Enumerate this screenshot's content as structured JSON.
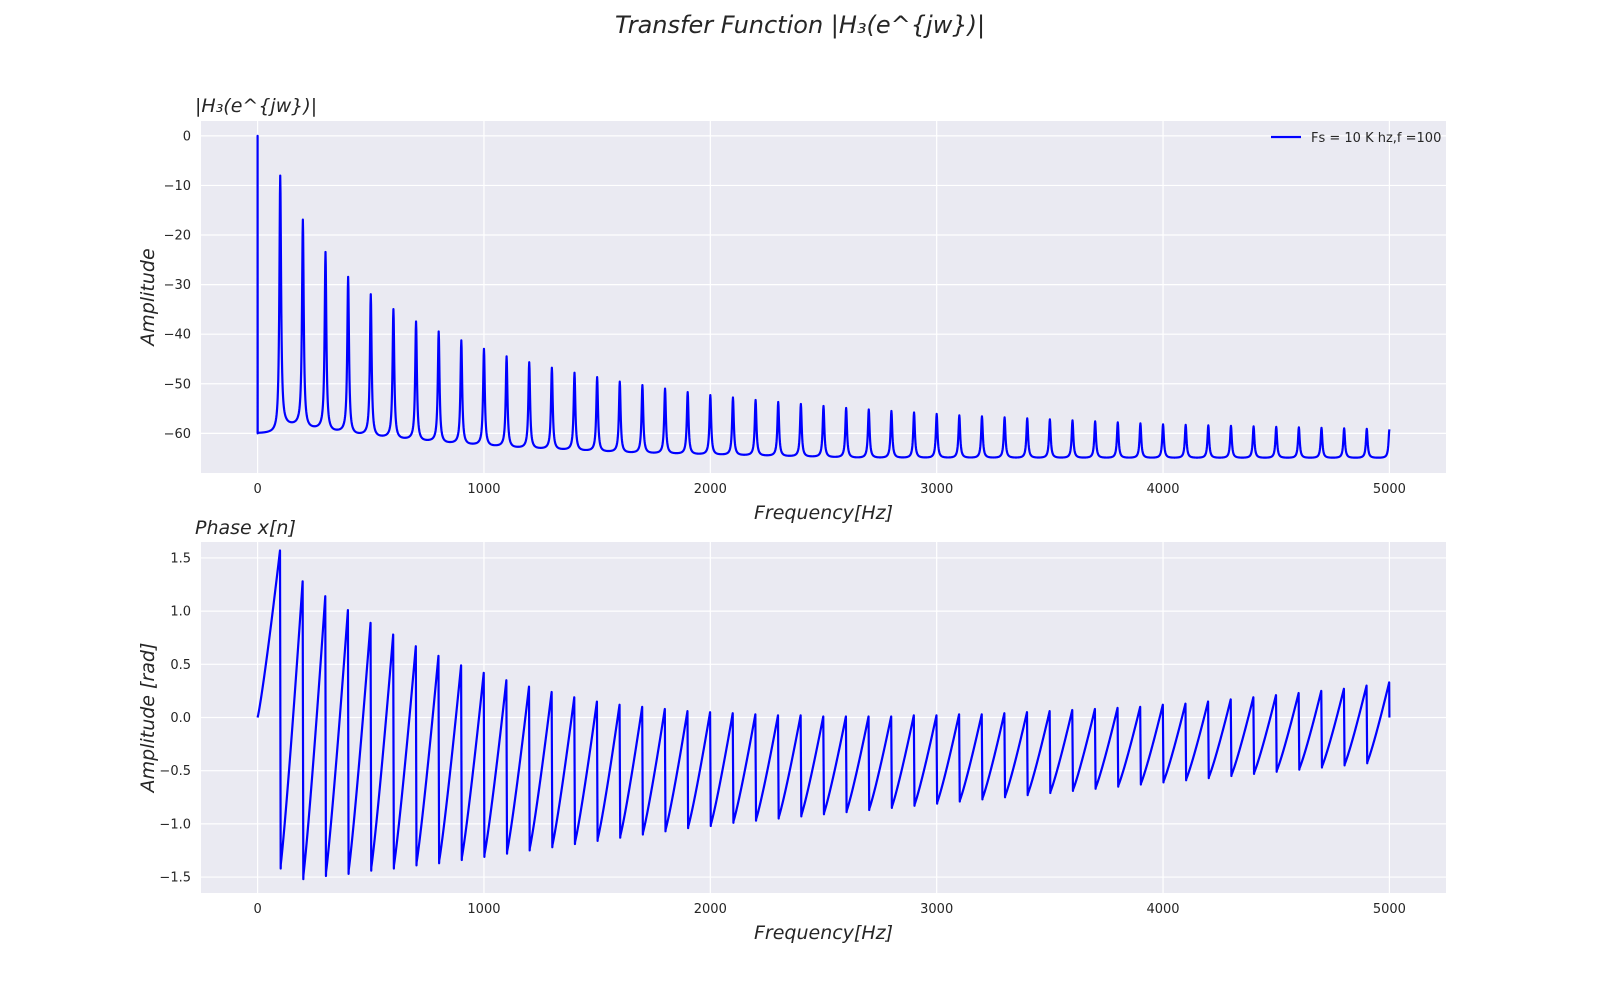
{
  "figure": {
    "title": "Transfer Function |H₃(e^{jw})|"
  },
  "colors": {
    "line": "#0000ff",
    "panel_bg": "#eaeaf2",
    "grid": "#ffffff",
    "text": "#262626",
    "tick_text": "#262626"
  },
  "chart_data": [
    {
      "type": "line",
      "title": "|H₃(e^{jw})|",
      "xlabel": "Frequency[Hz]",
      "ylabel": "Amplitude",
      "xlim": [
        -250,
        5250
      ],
      "ylim": [
        -68,
        3
      ],
      "xticks": [
        0,
        1000,
        2000,
        3000,
        4000,
        5000
      ],
      "yticks": [
        0,
        -10,
        -20,
        -30,
        -40,
        -50,
        -60
      ],
      "grid": true,
      "legend": {
        "position": "top-right",
        "entries": [
          "Fs = 10 K hz,f =100"
        ]
      },
      "series": [
        {
          "name": "Fs = 10 K hz,f =100",
          "model": "comb magnitude: peaks every 100 Hz, 0 to 5000 Hz",
          "peak_freqs": [
            0,
            100,
            200,
            300,
            400,
            500,
            600,
            700,
            800,
            900,
            1000,
            1100,
            1200,
            1300,
            1400,
            1500,
            1600,
            1700,
            1800,
            1900,
            2000,
            2100,
            2200,
            2300,
            2400,
            2500,
            2600,
            2700,
            2800,
            2900,
            3000,
            3100,
            3200,
            3300,
            3400,
            3500,
            3600,
            3700,
            3800,
            3900,
            4000,
            4100,
            4200,
            4300,
            4400,
            4500,
            4600,
            4700,
            4800,
            4900,
            5000
          ],
          "peak_values": [
            0,
            -8,
            -17,
            -23.5,
            -28.5,
            -32,
            -35,
            -37.5,
            -39.5,
            -41.3,
            -43,
            -44.5,
            -45.7,
            -46.8,
            -47.8,
            -48.7,
            -49.6,
            -50.3,
            -51,
            -51.7,
            -52.3,
            -52.8,
            -53.3,
            -53.7,
            -54.1,
            -54.5,
            -54.9,
            -55.2,
            -55.5,
            -55.8,
            -56.1,
            -56.4,
            -56.6,
            -56.8,
            -57,
            -57.2,
            -57.4,
            -57.6,
            -57.8,
            -58,
            -58.2,
            -58.3,
            -58.4,
            -58.5,
            -58.6,
            -58.7,
            -58.8,
            -58.9,
            -59,
            -59.1,
            -59.2
          ],
          "trough_values": [
            -60,
            -58.5,
            -59.2,
            -59.8,
            -60.4,
            -60.9,
            -61.3,
            -61.7,
            -62.1,
            -62.4,
            -62.7,
            -63,
            -63.2,
            -63.4,
            -63.6,
            -63.8,
            -64,
            -64.1,
            -64.2,
            -64.3,
            -64.4,
            -64.5,
            -64.6,
            -64.7,
            -64.8,
            -64.9,
            -65,
            -65,
            -65,
            -65,
            -65,
            -65,
            -65,
            -65,
            -65,
            -65,
            -65,
            -65,
            -65,
            -65,
            -65,
            -65,
            -65,
            -65,
            -65,
            -65,
            -65,
            -65,
            -65,
            -65
          ],
          "end_value": -59.2
        }
      ]
    },
    {
      "type": "line",
      "title": "Phase x[n]",
      "xlabel": "Frequency[Hz]",
      "ylabel": "Amplitude [rad]",
      "xlim": [
        -250,
        5250
      ],
      "ylim": [
        -1.65,
        1.65
      ],
      "xticks": [
        0,
        1000,
        2000,
        3000,
        4000,
        5000
      ],
      "yticks": [
        1.5,
        1.0,
        0.5,
        0.0,
        -0.5,
        -1.0,
        -1.5
      ],
      "grid": true,
      "series": [
        {
          "model": "sawtooth phase: ramps to max before each 100 Hz multiple, drops to min just after",
          "period_hz": 100,
          "max_values": [
            1.57,
            1.28,
            1.14,
            1.01,
            0.89,
            0.78,
            0.67,
            0.58,
            0.49,
            0.42,
            0.35,
            0.29,
            0.24,
            0.19,
            0.15,
            0.12,
            0.1,
            0.08,
            0.06,
            0.05,
            0.04,
            0.03,
            0.02,
            0.02,
            0.01,
            0.01,
            0.01,
            0.01,
            0.02,
            0.02,
            0.03,
            0.03,
            0.04,
            0.05,
            0.06,
            0.07,
            0.08,
            0.09,
            0.1,
            0.12,
            0.13,
            0.15,
            0.17,
            0.19,
            0.21,
            0.23,
            0.25,
            0.27,
            0.3,
            0.33
          ],
          "min_values": [
            -1.42,
            -1.52,
            -1.49,
            -1.47,
            -1.44,
            -1.42,
            -1.39,
            -1.37,
            -1.34,
            -1.31,
            -1.28,
            -1.25,
            -1.22,
            -1.19,
            -1.16,
            -1.13,
            -1.1,
            -1.07,
            -1.04,
            -1.02,
            -0.99,
            -0.97,
            -0.95,
            -0.93,
            -0.91,
            -0.89,
            -0.87,
            -0.85,
            -0.83,
            -0.81,
            -0.79,
            -0.77,
            -0.75,
            -0.73,
            -0.71,
            -0.69,
            -0.67,
            -0.65,
            -0.63,
            -0.61,
            -0.59,
            -0.57,
            -0.55,
            -0.53,
            -0.51,
            -0.49,
            -0.47,
            -0.45,
            -0.43
          ],
          "start_value": 0.0,
          "end_value": 0.0
        }
      ]
    }
  ]
}
